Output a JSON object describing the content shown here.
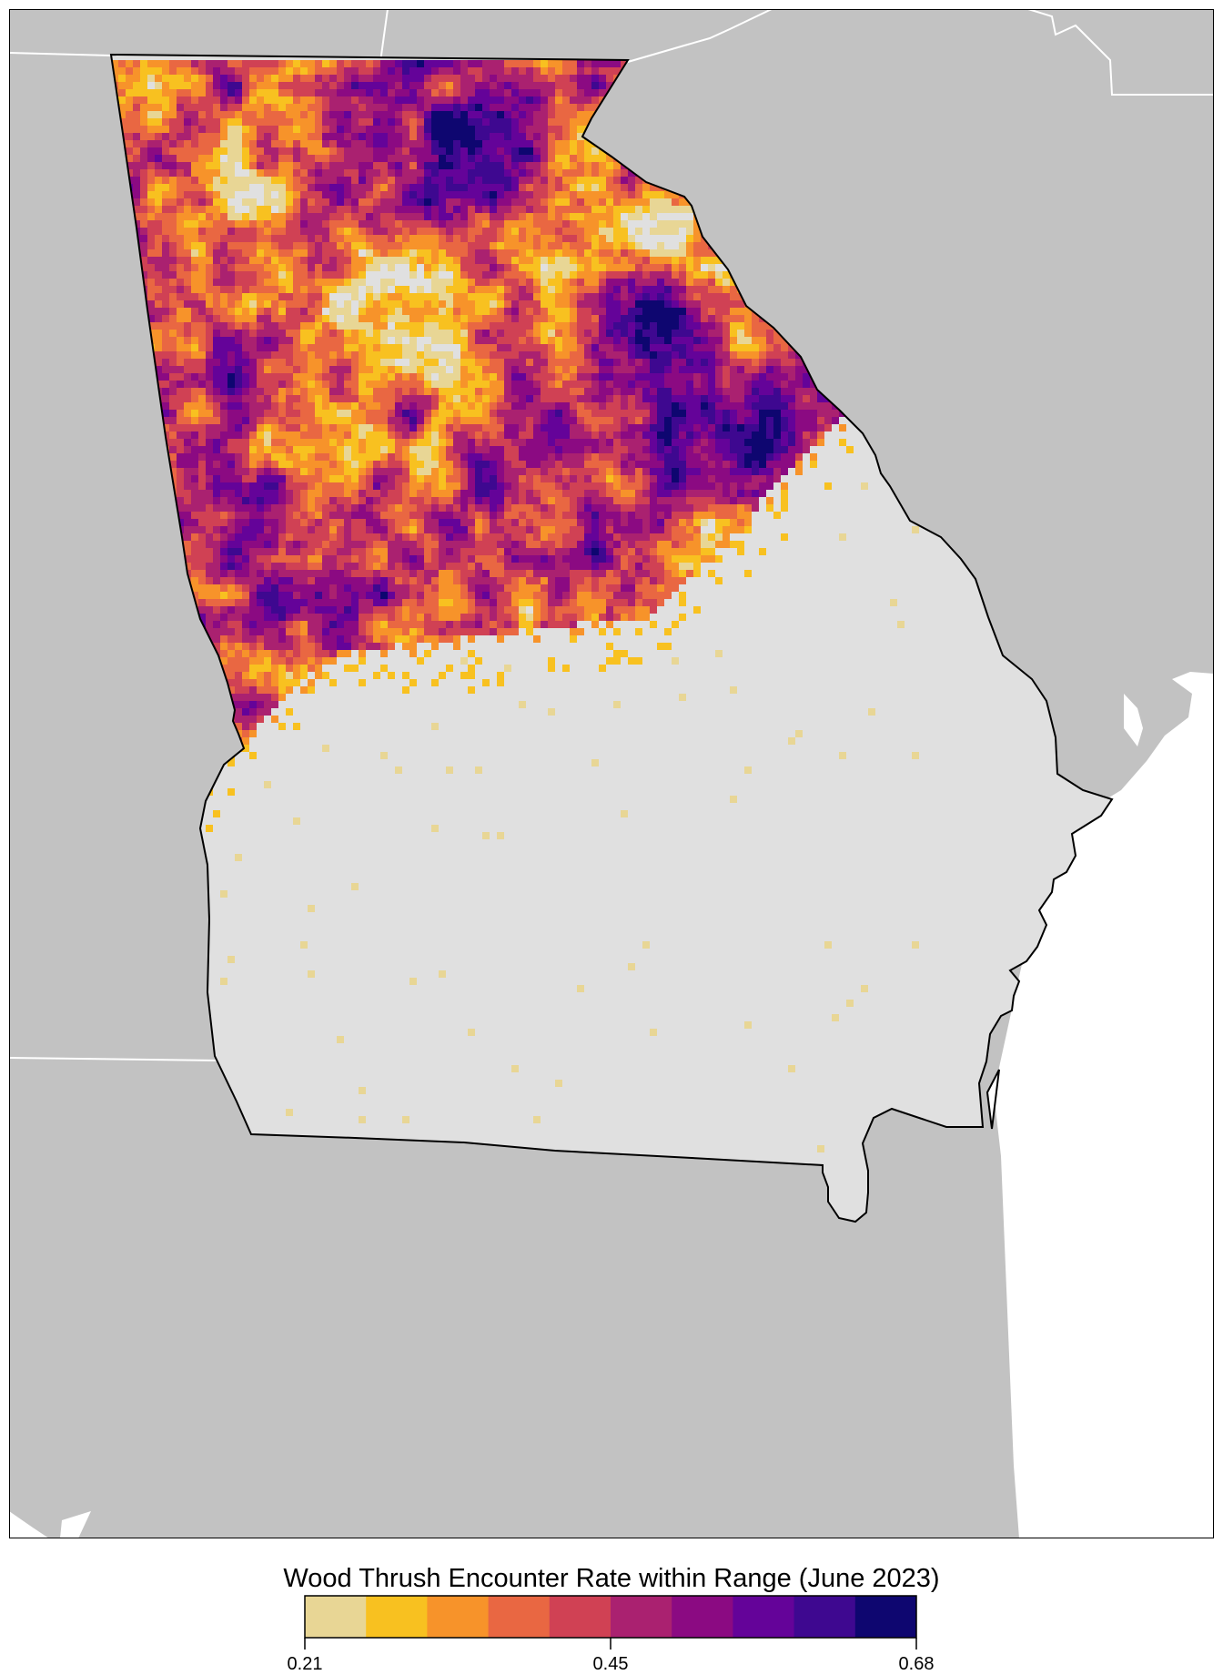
{
  "legend": {
    "title": "Wood Thrush Encounter Rate within Range (June 2023)",
    "min_label": "0.21",
    "mid_label": "0.45",
    "max_label": "0.68",
    "range": [
      0.21,
      0.68
    ],
    "bins": [
      {
        "color": "#e8d695"
      },
      {
        "color": "#f8c120"
      },
      {
        "color": "#f7932a"
      },
      {
        "color": "#e96742"
      },
      {
        "color": "#d04154"
      },
      {
        "color": "#aa2170"
      },
      {
        "color": "#8b0a82"
      },
      {
        "color": "#640399"
      },
      {
        "color": "#3e0890"
      },
      {
        "color": "#0e0670"
      }
    ]
  },
  "map": {
    "focus_state": "Georgia",
    "land_color": "#c2c2c2",
    "state_fill": "#e0e0e0",
    "water_color": "#ffffff",
    "state_line_color": "#ffffff",
    "focus_outline_color": "#000000"
  }
}
